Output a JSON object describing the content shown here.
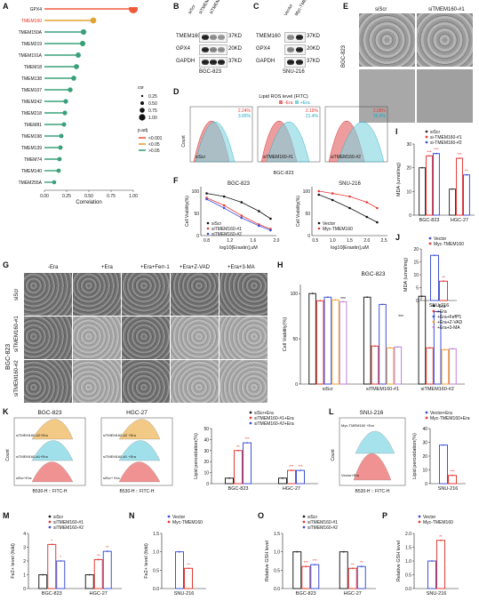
{
  "panel_letters": [
    "A",
    "B",
    "C",
    "D",
    "E",
    "F",
    "G",
    "H",
    "I",
    "J",
    "K",
    "L",
    "M",
    "N",
    "O",
    "P"
  ],
  "A": {
    "genes": [
      "GPX4",
      "TMEM160",
      "TMEM150A",
      "TMEM219",
      "TMEM191A",
      "TMEM18",
      "TMEM138",
      "TMEM107",
      "TMEM242",
      "TMEM218",
      "TMEM81",
      "TMEM198",
      "TMEM139",
      "TMEM74",
      "TMEM140",
      "TMEM255A"
    ],
    "correlations": [
      1.0,
      0.55,
      0.44,
      0.43,
      0.38,
      0.36,
      0.33,
      0.29,
      0.24,
      0.23,
      0.22,
      0.19,
      0.18,
      0.17,
      0.16,
      0.11
    ],
    "xlabel": "Correlation",
    "xticks": [
      "0.00",
      "0.25",
      "0.50",
      "0.75",
      "1.00"
    ],
    "cor_title": "cor",
    "cor_levels": [
      "0.25",
      "0.50",
      "0.75",
      "1.00"
    ],
    "padj_title": "p.adj",
    "padj_levels": [
      "<0.001",
      "<0.05",
      ">0.05"
    ],
    "colors": {
      "gpx4": "#f05a3c",
      "tmem160": "#e0a330",
      "other": "#3aa07a"
    }
  },
  "B": {
    "lanes": [
      "siScr",
      "siTMEM160-#1",
      "siTMEM160-#2"
    ],
    "proteins": [
      "TMEM160",
      "GPX4",
      "GAPDH"
    ],
    "sizes": [
      "37KD",
      "20KD",
      "37KD"
    ],
    "cell": "BGC-823"
  },
  "C": {
    "lanes": [
      "Vector",
      "Myc-TMEM160"
    ],
    "proteins": [
      "TMEM160",
      "GPX4",
      "GAPDH"
    ],
    "sizes": [
      "37KD",
      "20KD",
      "37KD"
    ],
    "cell": "SNU-216"
  },
  "D": {
    "title": "Lipid ROS level (FITC)",
    "legend": [
      "-Era",
      "+Era"
    ],
    "samples": [
      "siScr",
      "siTMEM160-#1",
      "siTMEM160-#2"
    ],
    "minus": [
      "2.24%",
      "2.19%",
      "2.08%"
    ],
    "plus": [
      "3.65%",
      "21.4%",
      "36.8%"
    ],
    "ylabel": "Count",
    "cell": "BGC-823"
  },
  "E": {
    "labels": [
      "siScr",
      "siTMEM160-#1"
    ],
    "cell": "BGC-823"
  },
  "F": {
    "titles": [
      "BGC-823",
      "SNU-216"
    ],
    "xlabel": "log10[Erastin],uM",
    "ylabel": "Cell Viability(%)",
    "left_series": [
      "siScr",
      "siTMEM160-#1",
      "siTMEM160-#2"
    ],
    "right_series": [
      "Vector",
      "Myc-TMEM160"
    ],
    "left_xticks": [
      "0.8",
      "1.2",
      "1.6",
      "2.0"
    ],
    "right_xticks": [
      "0.5",
      "1.0",
      "1.5",
      "2.0",
      "2.5"
    ],
    "yticks": [
      "0",
      "50",
      "100"
    ]
  },
  "G": {
    "columns": [
      "-Era",
      "+Era",
      "+Era+Ferr-1",
      "+Era+Z-VAD",
      "+Era+3-MA"
    ],
    "rows": [
      "siScr",
      "siTMEM160-#1",
      "siTMEM160-#2"
    ],
    "cell": "BGC-823"
  },
  "H": {
    "title": "BGC-823",
    "ylabel": "Cell Viability(%)",
    "legend": [
      "-Era",
      "+Era",
      "+Era+Ferr-1",
      "+Era+Z-VAD",
      "+Era+3-MA"
    ],
    "groups": [
      "siScr",
      "siTMEM160-#1",
      "siTMEM160-#2"
    ],
    "sig": [
      "***",
      "***",
      "***"
    ],
    "yticks": [
      "0",
      "50",
      "100"
    ]
  },
  "I": {
    "ylabel": "MDA (umol/mg)",
    "legend": [
      "siScr",
      "si-TMEM160-#1",
      "si-TMEM160-#2"
    ],
    "groups": [
      "BGC-823",
      "HGC-27"
    ],
    "sig": [
      "***",
      "***",
      "***",
      "**"
    ],
    "yticks": [
      "0",
      "10",
      "20",
      "30"
    ]
  },
  "J": {
    "ylabel": "MDA (umol/mg)",
    "legend": [
      "Vector",
      "Myc-TMEM160"
    ],
    "group": "SNU-216",
    "sig": "**",
    "yticks": [
      "0",
      "5",
      "10",
      "15",
      "20"
    ]
  },
  "K": {
    "titles": [
      "BGC-823",
      "HGC-27"
    ],
    "left_samples": [
      "siTMEM160-#2+Era",
      "siTMEM160-#1+Era",
      "siScr+Era"
    ],
    "right_samples": [
      "siTMEM160-#2 +Era",
      "siTMEM160-#1 +Era",
      "siScr+ Era"
    ],
    "xlabel": "B530-H :: FITC-H",
    "ylabel": "Count",
    "bar_legend": [
      "siScr+Era",
      "siTMEM160-#1+Era",
      "siTMEM160-#2+Era"
    ],
    "bar_ylabel": "Lipid peroxidation(%)",
    "groups": [
      "BGC-823",
      "HGC-27"
    ],
    "sig": [
      "**",
      "***",
      "***",
      "***"
    ],
    "yticks": [
      "0",
      "10",
      "20",
      "30",
      "40",
      "50"
    ]
  },
  "L": {
    "title": "SNU-216",
    "samples": [
      "Myc-TMEM160 +Era",
      "Vector+Era"
    ],
    "xlabel": "B530-H :: FITC-H",
    "ylabel": "Count",
    "bar_legend": [
      "Vector+Era",
      "Myc-TMEM160+Era"
    ],
    "bar_ylabel": "Lipid peroxidation(%)",
    "group": "SNU-216",
    "sig": "***",
    "yticks": [
      "0",
      "10",
      "20",
      "30",
      "40"
    ]
  },
  "M": {
    "ylabel": "Fe2+ level (fold)",
    "legend": [
      "siScr",
      "siTMEM160-#1",
      "siTMEM160-#2"
    ],
    "groups": [
      "BGC-823",
      "HGC-27"
    ],
    "sig": [
      "*",
      "*",
      "**",
      "**"
    ],
    "yticks": [
      "0",
      "1",
      "2",
      "3",
      "4"
    ]
  },
  "N": {
    "ylabel": "Fe2+ level (fold)",
    "legend": [
      "Vector",
      "Myc-TMEM160"
    ],
    "group": "SNU-216",
    "sig": "**",
    "yticks": [
      "0.0",
      "0.5",
      "1.0",
      "1.5"
    ]
  },
  "O": {
    "ylabel": "Relative GSH level",
    "legend": [
      "siScr",
      "siTMEM160-#1",
      "siTMEM160-#2"
    ],
    "groups": [
      "BGC-823",
      "HGC-27"
    ],
    "sig": [
      "***",
      "***",
      "**",
      "**"
    ],
    "yticks": [
      "0.0",
      "0.5",
      "1.0",
      "1.5"
    ]
  },
  "P": {
    "ylabel": "Relative GSH level",
    "legend": [
      "Vector",
      "Myc-TMEM160"
    ],
    "group": "SNU-216",
    "sig": "**",
    "yticks": [
      "0.0",
      "0.5",
      "1.0",
      "1.5",
      "2.0"
    ]
  },
  "chart_data": [
    {
      "type": "scatter",
      "panel": "A",
      "categories": [
        "GPX4",
        "TMEM160",
        "TMEM150A",
        "TMEM219",
        "TMEM191A",
        "TMEM18",
        "TMEM138",
        "TMEM107",
        "TMEM242",
        "TMEM218",
        "TMEM81",
        "TMEM198",
        "TMEM139",
        "TMEM74",
        "TMEM140",
        "TMEM255A"
      ],
      "values": [
        1.0,
        0.55,
        0.44,
        0.43,
        0.38,
        0.36,
        0.33,
        0.29,
        0.24,
        0.23,
        0.22,
        0.19,
        0.18,
        0.17,
        0.16,
        0.11
      ],
      "xlabel": "Correlation",
      "xlim": [
        0,
        1
      ]
    },
    {
      "type": "line",
      "panel": "F-left",
      "title": "BGC-823",
      "xlabel": "log10[Erastin],uM",
      "ylabel": "Cell Viability(%)",
      "x": [
        0.8,
        1.1,
        1.4,
        1.7,
        1.9
      ],
      "series": [
        {
          "name": "siScr",
          "values": [
            95,
            88,
            75,
            55,
            38
          ]
        },
        {
          "name": "siTMEM160-#1",
          "values": [
            85,
            68,
            45,
            25,
            15
          ]
        },
        {
          "name": "siTMEM160-#2",
          "values": [
            82,
            62,
            40,
            22,
            12
          ]
        }
      ],
      "ylim": [
        0,
        110
      ]
    },
    {
      "type": "line",
      "panel": "F-right",
      "title": "SNU-216",
      "xlabel": "log10[Erastin],uM",
      "ylabel": "Cell Viability(%)",
      "x": [
        0.6,
        1.0,
        1.5,
        2.0,
        2.3
      ],
      "series": [
        {
          "name": "Vector",
          "values": [
            92,
            80,
            62,
            42,
            30
          ]
        },
        {
          "name": "Myc-TMEM160",
          "values": [
            100,
            95,
            88,
            75,
            62
          ]
        }
      ],
      "ylim": [
        0,
        110
      ]
    },
    {
      "type": "bar",
      "panel": "H",
      "title": "BGC-823",
      "categories": [
        "siScr",
        "siTMEM160-#1",
        "siTMEM160-#2"
      ],
      "series": [
        {
          "name": "-Era",
          "values": [
            100,
            96,
            97
          ]
        },
        {
          "name": "+Era",
          "values": [
            92,
            42,
            40
          ]
        },
        {
          "name": "+Era+Ferr-1",
          "values": [
            96,
            88,
            80
          ]
        },
        {
          "name": "+Era+Z-VAD",
          "values": [
            93,
            40,
            38
          ]
        },
        {
          "name": "+Era+3-MA",
          "values": [
            91,
            41,
            39
          ]
        }
      ],
      "ylim": [
        0,
        110
      ]
    },
    {
      "type": "bar",
      "panel": "I",
      "categories": [
        "BGC-823",
        "HGC-27"
      ],
      "series": [
        {
          "name": "siScr",
          "values": [
            20,
            11
          ]
        },
        {
          "name": "si-TMEM160-#1",
          "values": [
            25,
            24
          ]
        },
        {
          "name": "si-TMEM160-#2",
          "values": [
            26,
            17
          ]
        }
      ],
      "ylim": [
        0,
        30
      ]
    },
    {
      "type": "bar",
      "panel": "J",
      "categories": [
        "SNU-216"
      ],
      "series": [
        {
          "name": "Vector",
          "values": [
            17.5
          ]
        },
        {
          "name": "Myc-TMEM160",
          "values": [
            7.5
          ]
        }
      ],
      "ylim": [
        0,
        20
      ]
    },
    {
      "type": "bar",
      "panel": "K",
      "categories": [
        "BGC-823",
        "HGC-27"
      ],
      "series": [
        {
          "name": "siScr+Era",
          "values": [
            5,
            5
          ]
        },
        {
          "name": "siTMEM160-#1+Era",
          "values": [
            30,
            12
          ]
        },
        {
          "name": "siTMEM160-#2+Era",
          "values": [
            37,
            12
          ]
        }
      ],
      "ylim": [
        0,
        50
      ]
    },
    {
      "type": "bar",
      "panel": "L",
      "categories": [
        "SNU-216"
      ],
      "series": [
        {
          "name": "Vector+Era",
          "values": [
            28
          ]
        },
        {
          "name": "Myc-TMEM160+Era",
          "values": [
            6
          ]
        }
      ],
      "ylim": [
        0,
        40
      ]
    },
    {
      "type": "bar",
      "panel": "M",
      "categories": [
        "BGC-823",
        "HGC-27"
      ],
      "series": [
        {
          "name": "siScr",
          "values": [
            1.0,
            1.0
          ]
        },
        {
          "name": "siTMEM160-#1",
          "values": [
            3.2,
            2.1
          ]
        },
        {
          "name": "siTMEM160-#2",
          "values": [
            2.0,
            2.7
          ]
        }
      ],
      "ylim": [
        0,
        4
      ]
    },
    {
      "type": "bar",
      "panel": "N",
      "categories": [
        "SNU-216"
      ],
      "series": [
        {
          "name": "Vector",
          "values": [
            1.0
          ]
        },
        {
          "name": "Myc-TMEM160",
          "values": [
            0.55
          ]
        }
      ],
      "ylim": [
        0,
        1.5
      ]
    },
    {
      "type": "bar",
      "panel": "O",
      "categories": [
        "BGC-823",
        "HGC-27"
      ],
      "series": [
        {
          "name": "siScr",
          "values": [
            1.0,
            1.0
          ]
        },
        {
          "name": "siTMEM160-#1",
          "values": [
            0.6,
            0.55
          ]
        },
        {
          "name": "siTMEM160-#2",
          "values": [
            0.65,
            0.6
          ]
        }
      ],
      "ylim": [
        0,
        1.5
      ]
    },
    {
      "type": "bar",
      "panel": "P",
      "categories": [
        "SNU-216"
      ],
      "series": [
        {
          "name": "Vector",
          "values": [
            1.0
          ]
        },
        {
          "name": "Myc-TMEM160",
          "values": [
            1.75
          ]
        }
      ],
      "ylim": [
        0,
        2
      ]
    }
  ]
}
